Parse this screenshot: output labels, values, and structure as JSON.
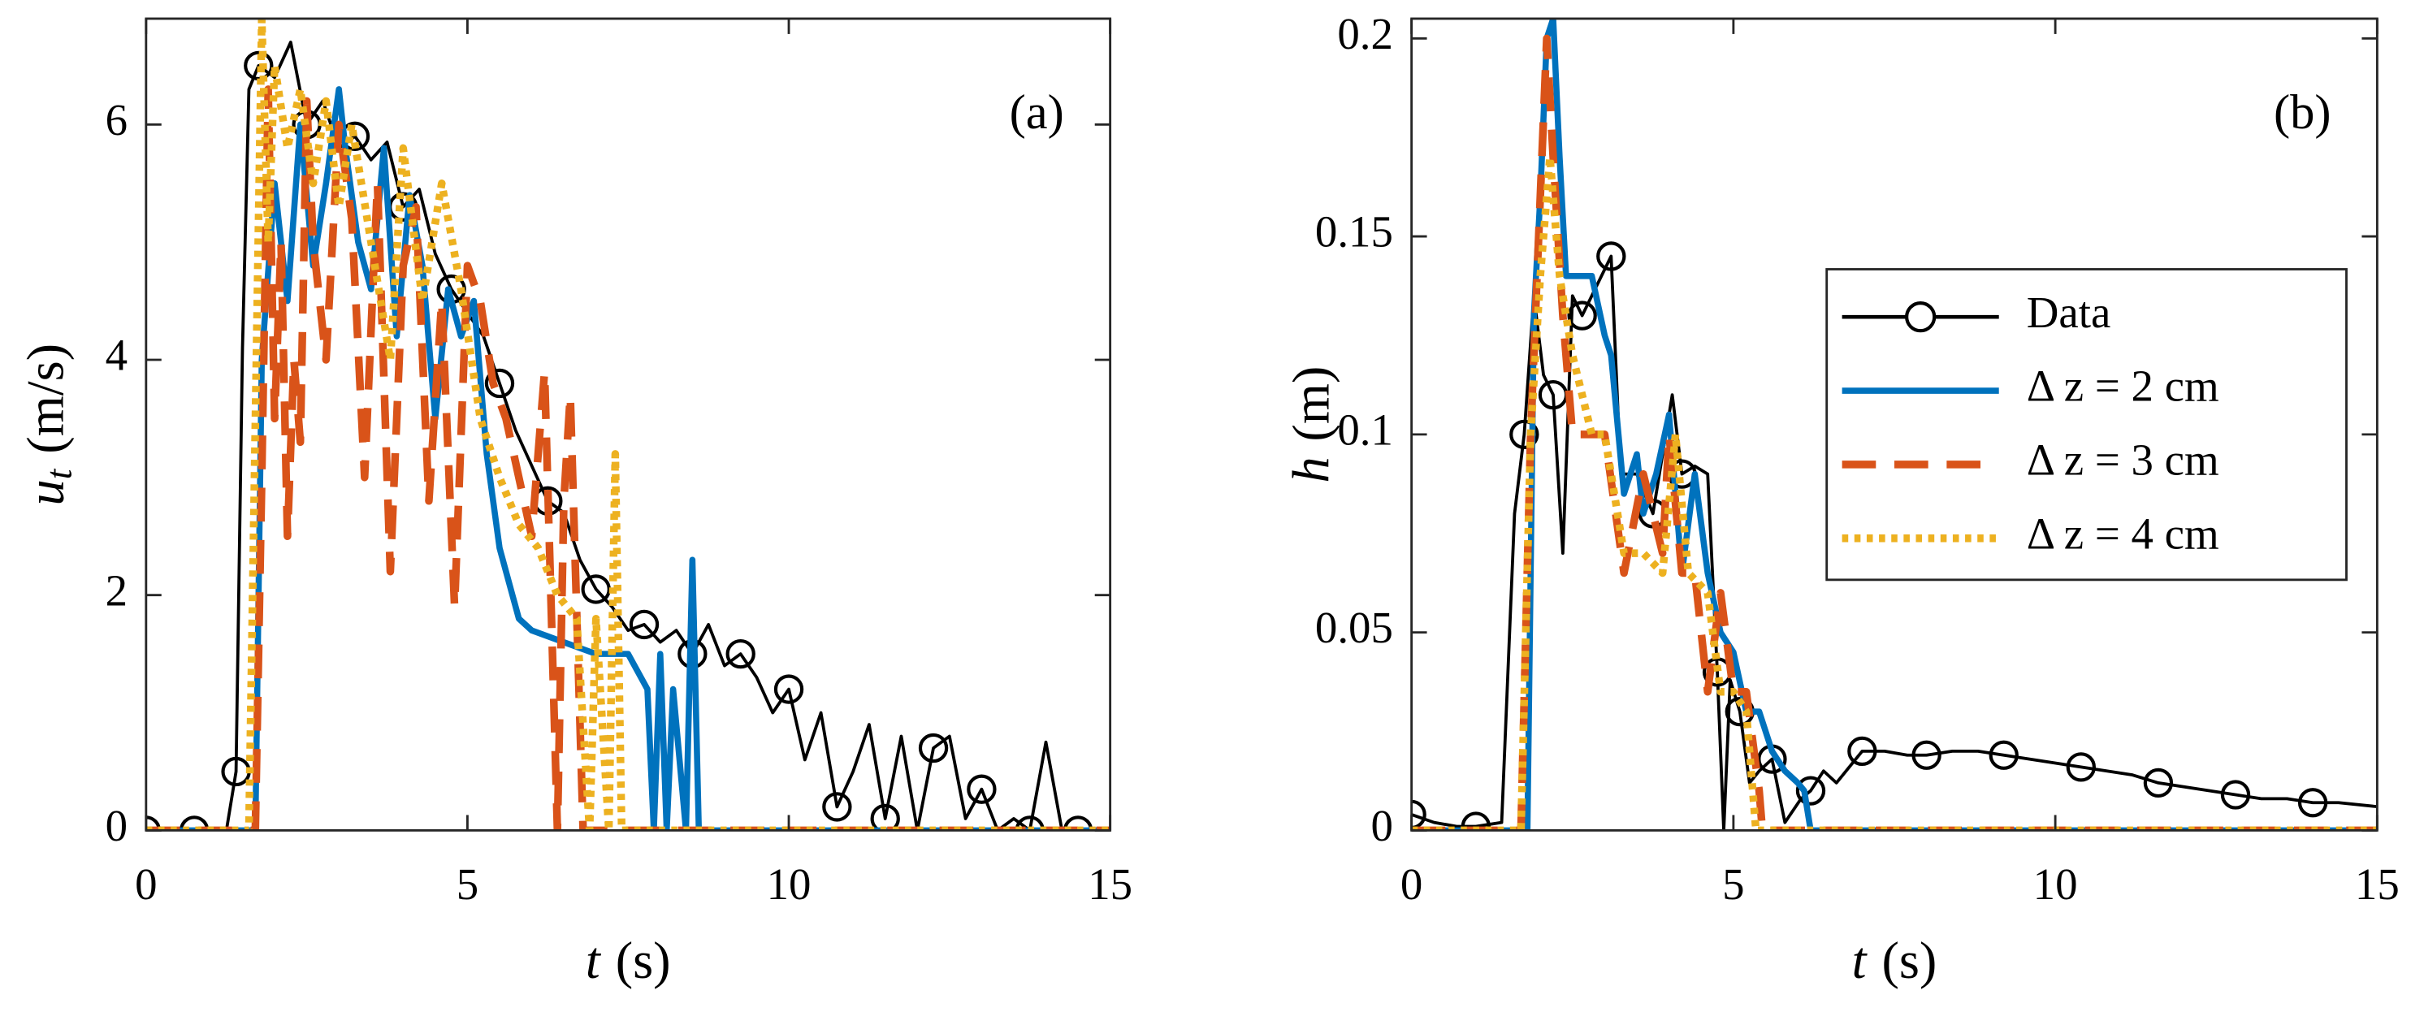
{
  "chart_data": [
    {
      "type": "line",
      "panel_label": "(a)",
      "xlabel": {
        "symbol": "t",
        "unit": "(s)"
      },
      "ylabel": {
        "symbol": "u",
        "subscript": "t",
        "unit": "(m/s)"
      },
      "xlim": [
        0,
        15
      ],
      "xticks": [
        0,
        5,
        10,
        15
      ],
      "ylim": [
        0,
        6.9
      ],
      "yticks": [
        0,
        2,
        4,
        6
      ],
      "series": [
        {
          "name": "Data",
          "color": "#000000",
          "style": "solid",
          "marker": "o",
          "x": [
            0,
            0.25,
            0.5,
            0.75,
            1,
            1.25,
            1.4,
            1.5,
            1.6,
            1.75,
            2,
            2.25,
            2.5,
            2.75,
            3,
            3.25,
            3.5,
            3.75,
            4,
            4.25,
            4.5,
            4.75,
            5,
            5.25,
            5.5,
            5.75,
            6,
            6.25,
            6.5,
            6.75,
            7,
            7.25,
            7.5,
            7.75,
            8,
            8.25,
            8.5,
            8.75,
            9,
            9.25,
            9.5,
            9.75,
            10,
            10.25,
            10.5,
            10.75,
            11,
            11.25,
            11.5,
            11.75,
            12,
            12.25,
            12.5,
            12.75,
            13,
            13.25,
            13.5,
            13.75,
            14,
            14.25,
            14.5,
            14.75,
            15
          ],
          "values": [
            0,
            0,
            0,
            0,
            0,
            0,
            0.5,
            4.1,
            6.3,
            6.5,
            6.4,
            6.7,
            6.0,
            6.2,
            5.8,
            5.9,
            5.7,
            5.85,
            5.3,
            5.45,
            4.9,
            4.6,
            4.4,
            4.2,
            3.8,
            3.4,
            3.1,
            2.8,
            2.7,
            2.3,
            2.05,
            1.9,
            1.7,
            1.75,
            1.6,
            1.7,
            1.5,
            1.75,
            1.4,
            1.5,
            1.3,
            1.0,
            1.2,
            0.6,
            1.0,
            0.2,
            0.5,
            0.9,
            0.1,
            0.8,
            0,
            0.7,
            0.8,
            0.1,
            0.35,
            0,
            0.1,
            0,
            0.75,
            0,
            0,
            0,
            0
          ]
        },
        {
          "name": "Δ z = 2 cm",
          "color": "#0072BD",
          "style": "solid",
          "x": [
            0,
            1.7,
            1.8,
            2.0,
            2.2,
            2.4,
            2.6,
            2.8,
            3.0,
            3.1,
            3.3,
            3.5,
            3.7,
            3.9,
            4.1,
            4.3,
            4.5,
            4.7,
            4.9,
            5.1,
            5.3,
            5.5,
            5.8,
            6.0,
            6.5,
            7.0,
            7.5,
            7.8,
            7.9,
            8.0,
            8.1,
            8.2,
            8.4,
            8.5,
            8.6,
            15
          ],
          "values": [
            0,
            0,
            4.0,
            5.5,
            4.5,
            6.0,
            4.8,
            5.5,
            6.3,
            5.8,
            5.0,
            4.6,
            5.8,
            4.2,
            5.4,
            4.8,
            3.5,
            4.6,
            4.2,
            4.5,
            3.2,
            2.4,
            1.8,
            1.7,
            1.6,
            1.5,
            1.5,
            1.2,
            0,
            1.5,
            0,
            1.2,
            0,
            2.3,
            0,
            0
          ]
        },
        {
          "name": "Δ z = 3 cm",
          "color": "#D95319",
          "style": "dashed",
          "x": [
            0,
            1.7,
            1.8,
            1.9,
            2.0,
            2.1,
            2.2,
            2.3,
            2.4,
            2.5,
            2.6,
            2.8,
            3.0,
            3.2,
            3.4,
            3.6,
            3.8,
            4.0,
            4.2,
            4.4,
            4.6,
            4.8,
            5.0,
            5.2,
            5.4,
            5.6,
            5.8,
            6.0,
            6.2,
            6.4,
            6.5,
            6.6,
            6.8,
            7.0,
            15
          ],
          "values": [
            0,
            0,
            3.0,
            6.3,
            3.5,
            5.0,
            2.5,
            4.0,
            3.3,
            6.2,
            5.0,
            4.0,
            6.0,
            5.2,
            3.0,
            5.5,
            2.2,
            4.8,
            5.3,
            2.8,
            4.5,
            1.9,
            4.8,
            4.5,
            3.8,
            3.5,
            3.0,
            2.5,
            3.9,
            0,
            2.8,
            3.7,
            0,
            0,
            0
          ]
        },
        {
          "name": "Δ z = 4 cm",
          "color": "#EDB120",
          "style": "dotted",
          "x": [
            0,
            1.6,
            1.8,
            1.9,
            2.0,
            2.2,
            2.4,
            2.6,
            2.8,
            3.0,
            3.2,
            3.5,
            3.8,
            4.0,
            4.3,
            4.6,
            4.9,
            5.2,
            5.5,
            5.8,
            6.1,
            6.4,
            6.7,
            6.9,
            7.0,
            7.2,
            7.3,
            7.4,
            15
          ],
          "values": [
            0,
            0,
            6.9,
            5.0,
            6.5,
            5.8,
            6.3,
            5.5,
            6.2,
            5.3,
            6.0,
            5.0,
            4.0,
            5.8,
            4.5,
            5.5,
            4.6,
            3.5,
            3.0,
            2.6,
            2.4,
            2.0,
            1.8,
            0,
            1.8,
            0,
            3.2,
            0,
            0
          ]
        }
      ]
    },
    {
      "type": "line",
      "panel_label": "(b)",
      "legend": "east",
      "xlabel": {
        "symbol": "t",
        "unit": "(s)"
      },
      "ylabel": {
        "symbol": "h",
        "unit": "(m)"
      },
      "xlim": [
        0,
        15
      ],
      "xticks": [
        0,
        5,
        10,
        15
      ],
      "ylim": [
        0,
        0.205
      ],
      "yticks": [
        0,
        0.05,
        0.1,
        0.15,
        0.2
      ],
      "series": [
        {
          "name": "Data",
          "color": "#000000",
          "style": "solid",
          "marker": "o",
          "x": [
            0,
            0.35,
            0.7,
            1.0,
            1.4,
            1.6,
            1.75,
            1.9,
            2.05,
            2.2,
            2.35,
            2.5,
            2.65,
            2.8,
            2.95,
            3.1,
            3.25,
            3.5,
            3.75,
            3.9,
            4.05,
            4.2,
            4.4,
            4.6,
            4.75,
            4.85,
            4.95,
            5.1,
            5.25,
            5.4,
            5.6,
            5.8,
            6.05,
            6.2,
            6.4,
            6.6,
            7.0,
            7.35,
            7.7,
            8.0,
            8.4,
            8.8,
            9.2,
            9.6,
            10.0,
            10.4,
            10.8,
            11.2,
            11.6,
            12.0,
            12.4,
            12.8,
            13.2,
            13.6,
            14.0,
            14.4,
            15
          ],
          "values": [
            0.004,
            0.002,
            0.001,
            0.001,
            0.002,
            0.08,
            0.1,
            0.135,
            0.115,
            0.11,
            0.07,
            0.135,
            0.13,
            0.135,
            0.14,
            0.145,
            0.09,
            0.09,
            0.08,
            0.095,
            0.11,
            0.09,
            0.092,
            0.09,
            0.04,
            0,
            0.038,
            0.03,
            0.012,
            0.015,
            0.018,
            0.002,
            0.008,
            0.01,
            0.015,
            0.012,
            0.02,
            0.02,
            0.019,
            0.019,
            0.02,
            0.02,
            0.019,
            0.018,
            0.017,
            0.016,
            0.015,
            0.014,
            0.012,
            0.011,
            0.01,
            0.009,
            0.008,
            0.008,
            0.007,
            0.007,
            0.006
          ]
        },
        {
          "name": "Δ z = 2 cm",
          "color": "#0072BD",
          "style": "solid",
          "x": [
            0,
            1.8,
            1.9,
            2.0,
            2.1,
            2.2,
            2.3,
            2.4,
            2.6,
            2.8,
            3.0,
            3.1,
            3.3,
            3.5,
            3.6,
            3.8,
            4.0,
            4.2,
            4.4,
            4.6,
            4.8,
            5.0,
            5.2,
            5.4,
            5.6,
            5.8,
            6.0,
            6.1,
            6.2,
            15
          ],
          "values": [
            0,
            0,
            0.13,
            0.16,
            0.2,
            0.205,
            0.17,
            0.14,
            0.14,
            0.14,
            0.125,
            0.12,
            0.085,
            0.095,
            0.08,
            0.09,
            0.105,
            0.065,
            0.09,
            0.065,
            0.05,
            0.045,
            0.03,
            0.03,
            0.02,
            0.015,
            0.012,
            0.01,
            0,
            0
          ]
        },
        {
          "name": "Δ z = 3 cm",
          "color": "#D95319",
          "style": "dashed",
          "x": [
            0,
            1.7,
            1.85,
            2.0,
            2.1,
            2.2,
            2.35,
            2.5,
            2.8,
            3.0,
            3.3,
            3.6,
            3.9,
            4.0,
            4.2,
            4.4,
            4.6,
            4.8,
            5.0,
            5.2,
            5.4,
            5.45,
            15
          ],
          "values": [
            0,
            0,
            0.1,
            0.16,
            0.2,
            0.17,
            0.13,
            0.1,
            0.1,
            0.1,
            0.065,
            0.09,
            0.07,
            0.1,
            0.065,
            0.065,
            0.035,
            0.06,
            0.035,
            0.035,
            0.01,
            0,
            0
          ]
        },
        {
          "name": "Δ z = 4 cm",
          "color": "#EDB120",
          "style": "dotted",
          "x": [
            0,
            1.7,
            1.85,
            2.0,
            2.15,
            2.3,
            2.5,
            2.8,
            3.0,
            3.3,
            3.6,
            3.9,
            4.1,
            4.3,
            4.6,
            4.8,
            5.0,
            5.2,
            5.35,
            15
          ],
          "values": [
            0,
            0,
            0.1,
            0.14,
            0.17,
            0.14,
            0.12,
            0.1,
            0.1,
            0.07,
            0.07,
            0.065,
            0.1,
            0.065,
            0.06,
            0.035,
            0.035,
            0.03,
            0,
            0
          ]
        }
      ]
    }
  ]
}
